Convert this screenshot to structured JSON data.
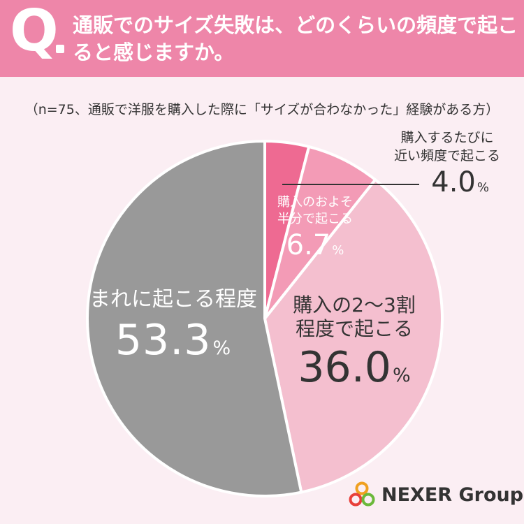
{
  "header": {
    "q_mark": "Q",
    "question": "通販でのサイズ失敗は、どのくらいの頻度で起こると感じますか。"
  },
  "subtitle": "（n=75、通販で洋服を購入した際に「サイズが合わなかった」経験がある方）",
  "chart_data": {
    "type": "pie",
    "title": "通販でのサイズ失敗は、どのくらいの頻度で起こると感じますか。",
    "subtitle": "（n=75、通販で洋服を購入した際に「サイズが合わなかった」経験がある方）",
    "unit": "%",
    "start": "12 o'clock, clockwise",
    "slices": [
      {
        "label": "購入するたびに近い頻度で起こる",
        "label_lines": [
          "購入するたびに",
          "近い頻度で起こる"
        ],
        "value": 4.0,
        "display": "4.0",
        "color": "#ee6a92"
      },
      {
        "label": "購入のおおよそ半分で起こる",
        "label_lines": [
          "購入のおよそ",
          "半分で起こる"
        ],
        "value": 6.7,
        "display": "6.7",
        "color": "#f39bb6"
      },
      {
        "label": "購入の2〜3割程度で起こる",
        "label_lines": [
          "購入の2〜3割",
          "程度で起こる"
        ],
        "value": 36.0,
        "display": "36.0",
        "color": "#f4bfcf"
      },
      {
        "label": "まれに起こる程度",
        "label_lines": [
          "まれに起こる程度"
        ],
        "value": 53.3,
        "display": "53.3",
        "color": "#999999"
      }
    ]
  },
  "logo": {
    "text": "NEXER Group"
  },
  "colors": {
    "header_bg": "#ee86a9",
    "page_bg": "#fbeef3",
    "slice_border": "#ffffff"
  }
}
